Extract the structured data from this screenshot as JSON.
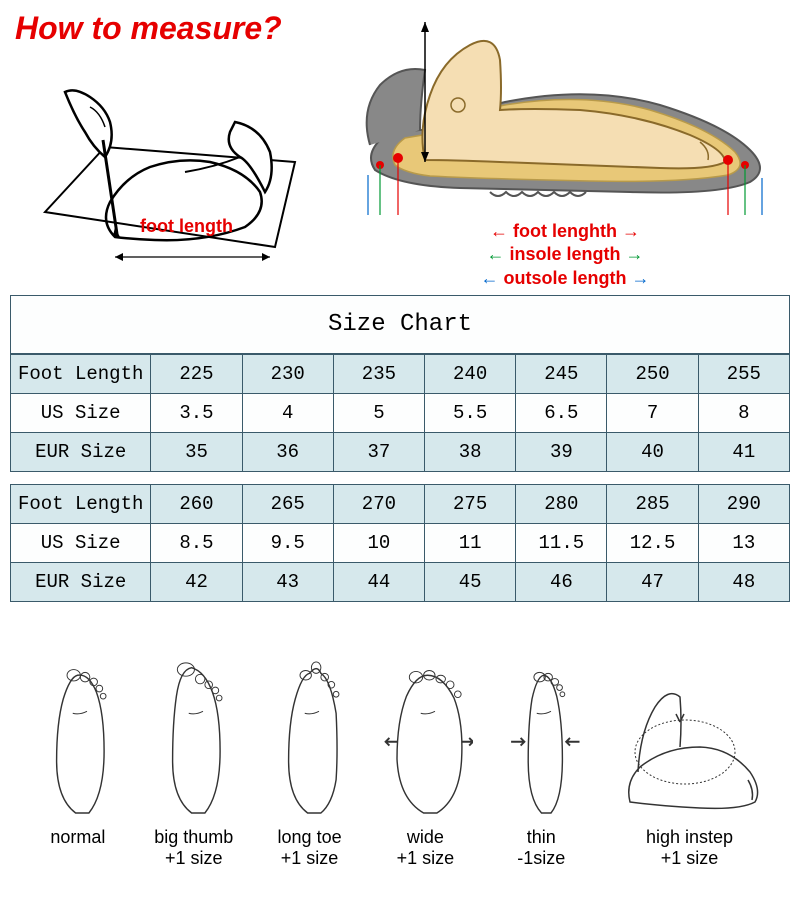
{
  "title": {
    "text": "How to measure?",
    "color": "#e60000"
  },
  "leftDiagram": {
    "label": "foot length",
    "label_color": "#e60000"
  },
  "rightDiagram": {
    "labels": [
      {
        "text": "foot lenghth",
        "color": "#e60000"
      },
      {
        "text": "insole length",
        "color": "#e60000"
      },
      {
        "text": "outsole length",
        "color": "#e60000"
      }
    ],
    "arrow_foot_color": "#e60000",
    "arrow_insole_color": "#009933",
    "arrow_outsole_color": "#0066cc",
    "shoe_sole_color": "#888888",
    "shoe_insole_color": "#e8c878",
    "foot_color": "#f5deb3",
    "dot_color": "#e60000"
  },
  "chart": {
    "title": "Size Chart",
    "row_even_bg": "#d6e8ec",
    "row_odd_bg": "#fdfefe",
    "border_color": "#3a5a6a",
    "table1": {
      "rows": [
        {
          "header": "Foot Length",
          "cells": [
            "225",
            "230",
            "235",
            "240",
            "245",
            "250",
            "255"
          ]
        },
        {
          "header": "US Size",
          "cells": [
            "3.5",
            "4",
            "5",
            "5.5",
            "6.5",
            "7",
            "8"
          ]
        },
        {
          "header": "EUR Size",
          "cells": [
            "35",
            "36",
            "37",
            "38",
            "39",
            "40",
            "41"
          ]
        }
      ]
    },
    "table2": {
      "rows": [
        {
          "header": "Foot Length",
          "cells": [
            "260",
            "265",
            "270",
            "275",
            "280",
            "285",
            "290"
          ]
        },
        {
          "header": "US Size",
          "cells": [
            "8.5",
            "9.5",
            "10",
            "11",
            "11.5",
            "12.5",
            "13"
          ]
        },
        {
          "header": "EUR Size",
          "cells": [
            "42",
            "43",
            "44",
            "45",
            "46",
            "47",
            "48"
          ]
        }
      ]
    }
  },
  "footTypes": [
    {
      "label": "normal",
      "adj": "",
      "variant": "normal"
    },
    {
      "label": "big thumb",
      "adj": "+1 size",
      "variant": "bigthumb"
    },
    {
      "label": "long toe",
      "adj": "+1 size",
      "variant": "longtoe"
    },
    {
      "label": "wide",
      "adj": "+1 size",
      "variant": "wide"
    },
    {
      "label": "thin",
      "adj": "-1size",
      "variant": "thin"
    },
    {
      "label": "high instep",
      "adj": "+1 size",
      "variant": "instep"
    }
  ],
  "footSketch": {
    "stroke": "#333333",
    "stroke_width": 1.5
  }
}
